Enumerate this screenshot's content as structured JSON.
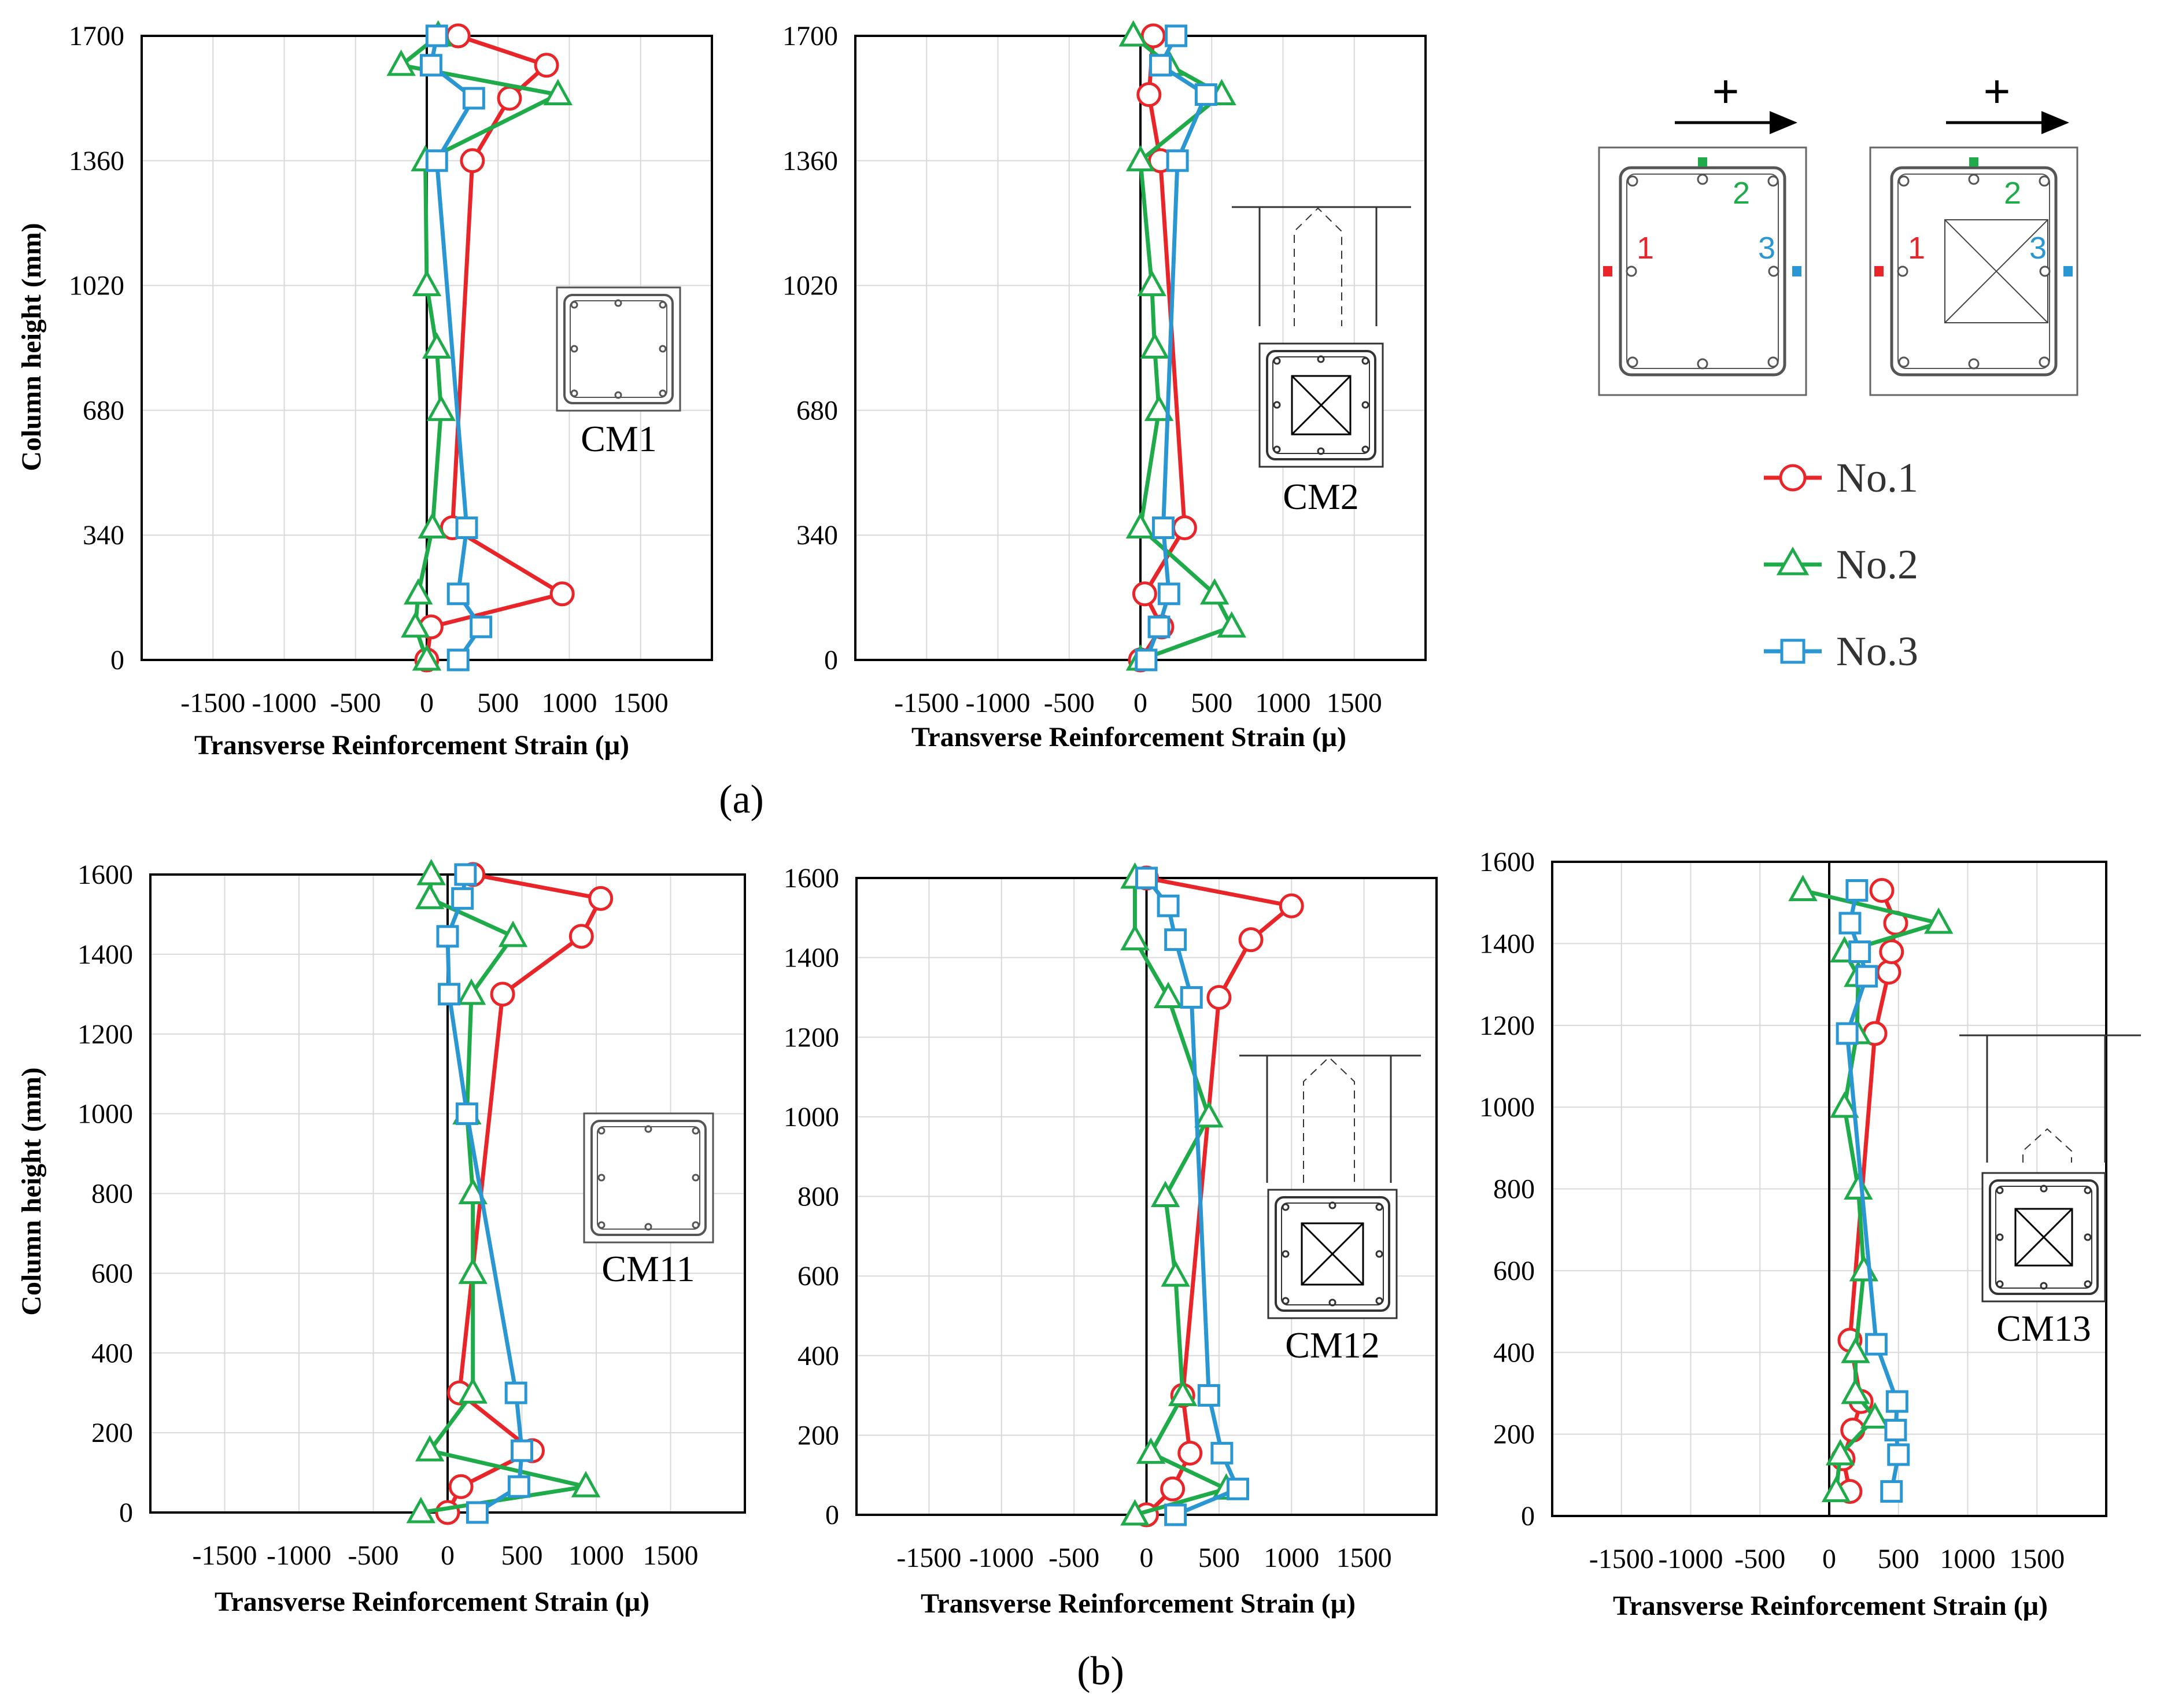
{
  "colors": {
    "no1": "#e8262a",
    "no2": "#1fab4a",
    "no3": "#2a96d2",
    "axis": "#000000",
    "grid": "#d9d9d9"
  },
  "labels": {
    "ylabel": "Column height (mm)",
    "xlabel": "Transverse Reinforcement Strain (μ)",
    "sub_a": "(a)",
    "sub_b": "(b)",
    "plus": "+"
  },
  "legend": {
    "no1": "No.1",
    "no2": "No.2",
    "no3": "No.3"
  },
  "sections": {
    "d1": "1",
    "d2": "2",
    "d3": "3"
  },
  "chart_data": [
    {
      "id": "cm1",
      "type": "line",
      "title": "CM1",
      "hollow": false,
      "xlabel": "Transverse Reinforcement Strain (μ)",
      "ylabel": "Column height (mm)",
      "xlim": [
        -2000,
        2000
      ],
      "ylim": [
        0,
        1700
      ],
      "xticks": [
        -1500,
        -1000,
        -500,
        0,
        500,
        1000,
        1500
      ],
      "xticklabels": [
        "-1500",
        "-1000",
        "-500",
        "0",
        "500",
        "1000",
        "1500"
      ],
      "yticks": [
        0,
        340,
        680,
        1020,
        1360,
        1700
      ],
      "series": [
        {
          "name": "No.1",
          "points": [
            [
              0,
              0
            ],
            [
              30,
              90
            ],
            [
              950,
              180
            ],
            [
              180,
              360
            ],
            [
              320,
              1360
            ],
            [
              580,
              1530
            ],
            [
              840,
              1620
            ],
            [
              220,
              1700
            ]
          ]
        },
        {
          "name": "No.2",
          "points": [
            [
              0,
              0
            ],
            [
              -80,
              90
            ],
            [
              -60,
              180
            ],
            [
              40,
              360
            ],
            [
              100,
              680
            ],
            [
              70,
              850
            ],
            [
              0,
              1020
            ],
            [
              -10,
              1360
            ],
            [
              920,
              1540
            ],
            [
              -180,
              1620
            ],
            [
              80,
              1700
            ]
          ]
        },
        {
          "name": "No.3",
          "points": [
            [
              220,
              0
            ],
            [
              380,
              90
            ],
            [
              220,
              180
            ],
            [
              280,
              360
            ],
            [
              70,
              1360
            ],
            [
              330,
              1530
            ],
            [
              30,
              1620
            ],
            [
              70,
              1700
            ]
          ]
        }
      ]
    },
    {
      "id": "cm2",
      "type": "line",
      "title": "CM2",
      "hollow": true,
      "xlabel": "Transverse Reinforcement Strain (μ)",
      "ylabel": "",
      "xlim": [
        -2000,
        2000
      ],
      "ylim": [
        0,
        1700
      ],
      "xticks": [
        -1500,
        -1000,
        -500,
        0,
        500,
        1000,
        1500
      ],
      "xticklabels": [
        "-1500",
        "-1000",
        "-500",
        "0",
        "500",
        "1000",
        "1500"
      ],
      "yticks": [
        0,
        340,
        680,
        1020,
        1360,
        1700
      ],
      "series": [
        {
          "name": "No.1",
          "points": [
            [
              0,
              0
            ],
            [
              150,
              90
            ],
            [
              30,
              180
            ],
            [
              310,
              360
            ],
            [
              140,
              1360
            ],
            [
              60,
              1540
            ],
            [
              90,
              1700
            ]
          ]
        },
        {
          "name": "No.2",
          "points": [
            [
              0,
              0
            ],
            [
              640,
              90
            ],
            [
              520,
              180
            ],
            [
              0,
              360
            ],
            [
              130,
              680
            ],
            [
              100,
              850
            ],
            [
              80,
              1020
            ],
            [
              0,
              1360
            ],
            [
              570,
              1540
            ],
            [
              200,
              1620
            ],
            [
              -50,
              1700
            ]
          ]
        },
        {
          "name": "No.3",
          "points": [
            [
              40,
              0
            ],
            [
              130,
              90
            ],
            [
              200,
              180
            ],
            [
              160,
              360
            ],
            [
              260,
              1360
            ],
            [
              460,
              1540
            ],
            [
              140,
              1620
            ],
            [
              250,
              1700
            ]
          ]
        }
      ]
    },
    {
      "id": "cm11",
      "type": "line",
      "title": "CM11",
      "hollow": false,
      "xlabel": "Transverse Reinforcement Strain (μ)",
      "ylabel": "Column height (mm)",
      "xlim": [
        -2000,
        2000
      ],
      "ylim": [
        0,
        1600
      ],
      "xticks": [
        -1500,
        -1000,
        -500,
        0,
        500,
        1000,
        1500
      ],
      "xticklabels": [
        "-1500",
        "-1000",
        "-500",
        "0",
        "500",
        "1000",
        "1500"
      ],
      "yticks": [
        0,
        200,
        400,
        600,
        800,
        1000,
        1200,
        1400,
        1600
      ],
      "series": [
        {
          "name": "No.1",
          "points": [
            [
              0,
              0
            ],
            [
              90,
              65
            ],
            [
              570,
              155
            ],
            [
              80,
              300
            ],
            [
              370,
              1300
            ],
            [
              900,
              1445
            ],
            [
              1030,
              1540
            ],
            [
              170,
              1600
            ]
          ]
        },
        {
          "name": "No.2",
          "points": [
            [
              -180,
              0
            ],
            [
              930,
              65
            ],
            [
              -120,
              155
            ],
            [
              170,
              300
            ],
            [
              170,
              600
            ],
            [
              170,
              800
            ],
            [
              130,
              1000
            ],
            [
              160,
              1300
            ],
            [
              440,
              1445
            ],
            [
              -120,
              1540
            ],
            [
              -110,
              1600
            ]
          ]
        },
        {
          "name": "No.3",
          "points": [
            [
              200,
              0
            ],
            [
              480,
              65
            ],
            [
              500,
              155
            ],
            [
              460,
              300
            ],
            [
              130,
              1000
            ],
            [
              10,
              1300
            ],
            [
              0,
              1445
            ],
            [
              100,
              1540
            ],
            [
              120,
              1600
            ]
          ]
        }
      ]
    },
    {
      "id": "cm12",
      "type": "line",
      "title": "CM12",
      "hollow": true,
      "xlabel": "Transverse Reinforcement Strain (μ)",
      "ylabel": "",
      "xlim": [
        -2000,
        2000
      ],
      "ylim": [
        0,
        1600
      ],
      "xticks": [
        -1500,
        -1000,
        -500,
        0,
        500,
        1000,
        1500
      ],
      "xticklabels": [
        "-1500",
        "-1000",
        "-500",
        "0",
        "500",
        "1000",
        "1500"
      ],
      "yticks": [
        0,
        200,
        400,
        600,
        800,
        1000,
        1200,
        1400,
        1600
      ],
      "series": [
        {
          "name": "No.1",
          "points": [
            [
              0,
              0
            ],
            [
              180,
              65
            ],
            [
              300,
              155
            ],
            [
              250,
              300
            ],
            [
              500,
              1300
            ],
            [
              720,
              1445
            ],
            [
              1000,
              1530
            ],
            [
              0,
              1600
            ]
          ]
        },
        {
          "name": "No.2",
          "points": [
            [
              -80,
              0
            ],
            [
              550,
              65
            ],
            [
              30,
              155
            ],
            [
              250,
              300
            ],
            [
              200,
              600
            ],
            [
              130,
              800
            ],
            [
              430,
              1000
            ],
            [
              150,
              1300
            ],
            [
              -80,
              1445
            ],
            [
              -80,
              1600
            ]
          ]
        },
        {
          "name": "No.3",
          "points": [
            [
              200,
              0
            ],
            [
              630,
              65
            ],
            [
              520,
              155
            ],
            [
              430,
              300
            ],
            [
              310,
              1300
            ],
            [
              200,
              1445
            ],
            [
              150,
              1530
            ],
            [
              0,
              1600
            ]
          ]
        }
      ]
    },
    {
      "id": "cm13",
      "type": "line",
      "title": "CM13",
      "hollow": true,
      "xlabel": "Transverse Reinforcement Strain (μ)",
      "ylabel": "",
      "xlim": [
        -2000,
        2000
      ],
      "ylim": [
        0,
        1600
      ],
      "xticks": [
        -1500,
        -1000,
        -500,
        0,
        500,
        1000,
        1500
      ],
      "xticklabels": [
        "-1500",
        "-1000",
        "-500",
        "0",
        "500",
        "1000",
        "1500"
      ],
      "yticks": [
        0,
        200,
        400,
        600,
        800,
        1000,
        1200,
        1400,
        1600
      ],
      "series": [
        {
          "name": "No.1",
          "points": [
            [
              150,
              60
            ],
            [
              100,
              140
            ],
            [
              170,
              210
            ],
            [
              230,
              280
            ],
            [
              150,
              430
            ],
            [
              330,
              1180
            ],
            [
              430,
              1330
            ],
            [
              450,
              1380
            ],
            [
              480,
              1450
            ],
            [
              380,
              1530
            ]
          ]
        },
        {
          "name": "No.2",
          "points": [
            [
              50,
              60
            ],
            [
              80,
              150
            ],
            [
              330,
              240
            ],
            [
              190,
              300
            ],
            [
              190,
              400
            ],
            [
              250,
              600
            ],
            [
              210,
              800
            ],
            [
              110,
              1000
            ],
            [
              200,
              1180
            ],
            [
              210,
              1320
            ],
            [
              110,
              1380
            ],
            [
              790,
              1450
            ],
            [
              -190,
              1530
            ]
          ]
        },
        {
          "name": "No.3",
          "points": [
            [
              450,
              60
            ],
            [
              500,
              150
            ],
            [
              480,
              210
            ],
            [
              490,
              280
            ],
            [
              340,
              420
            ],
            [
              130,
              1180
            ],
            [
              270,
              1320
            ],
            [
              220,
              1380
            ],
            [
              150,
              1450
            ],
            [
              200,
              1530
            ]
          ]
        }
      ]
    }
  ]
}
